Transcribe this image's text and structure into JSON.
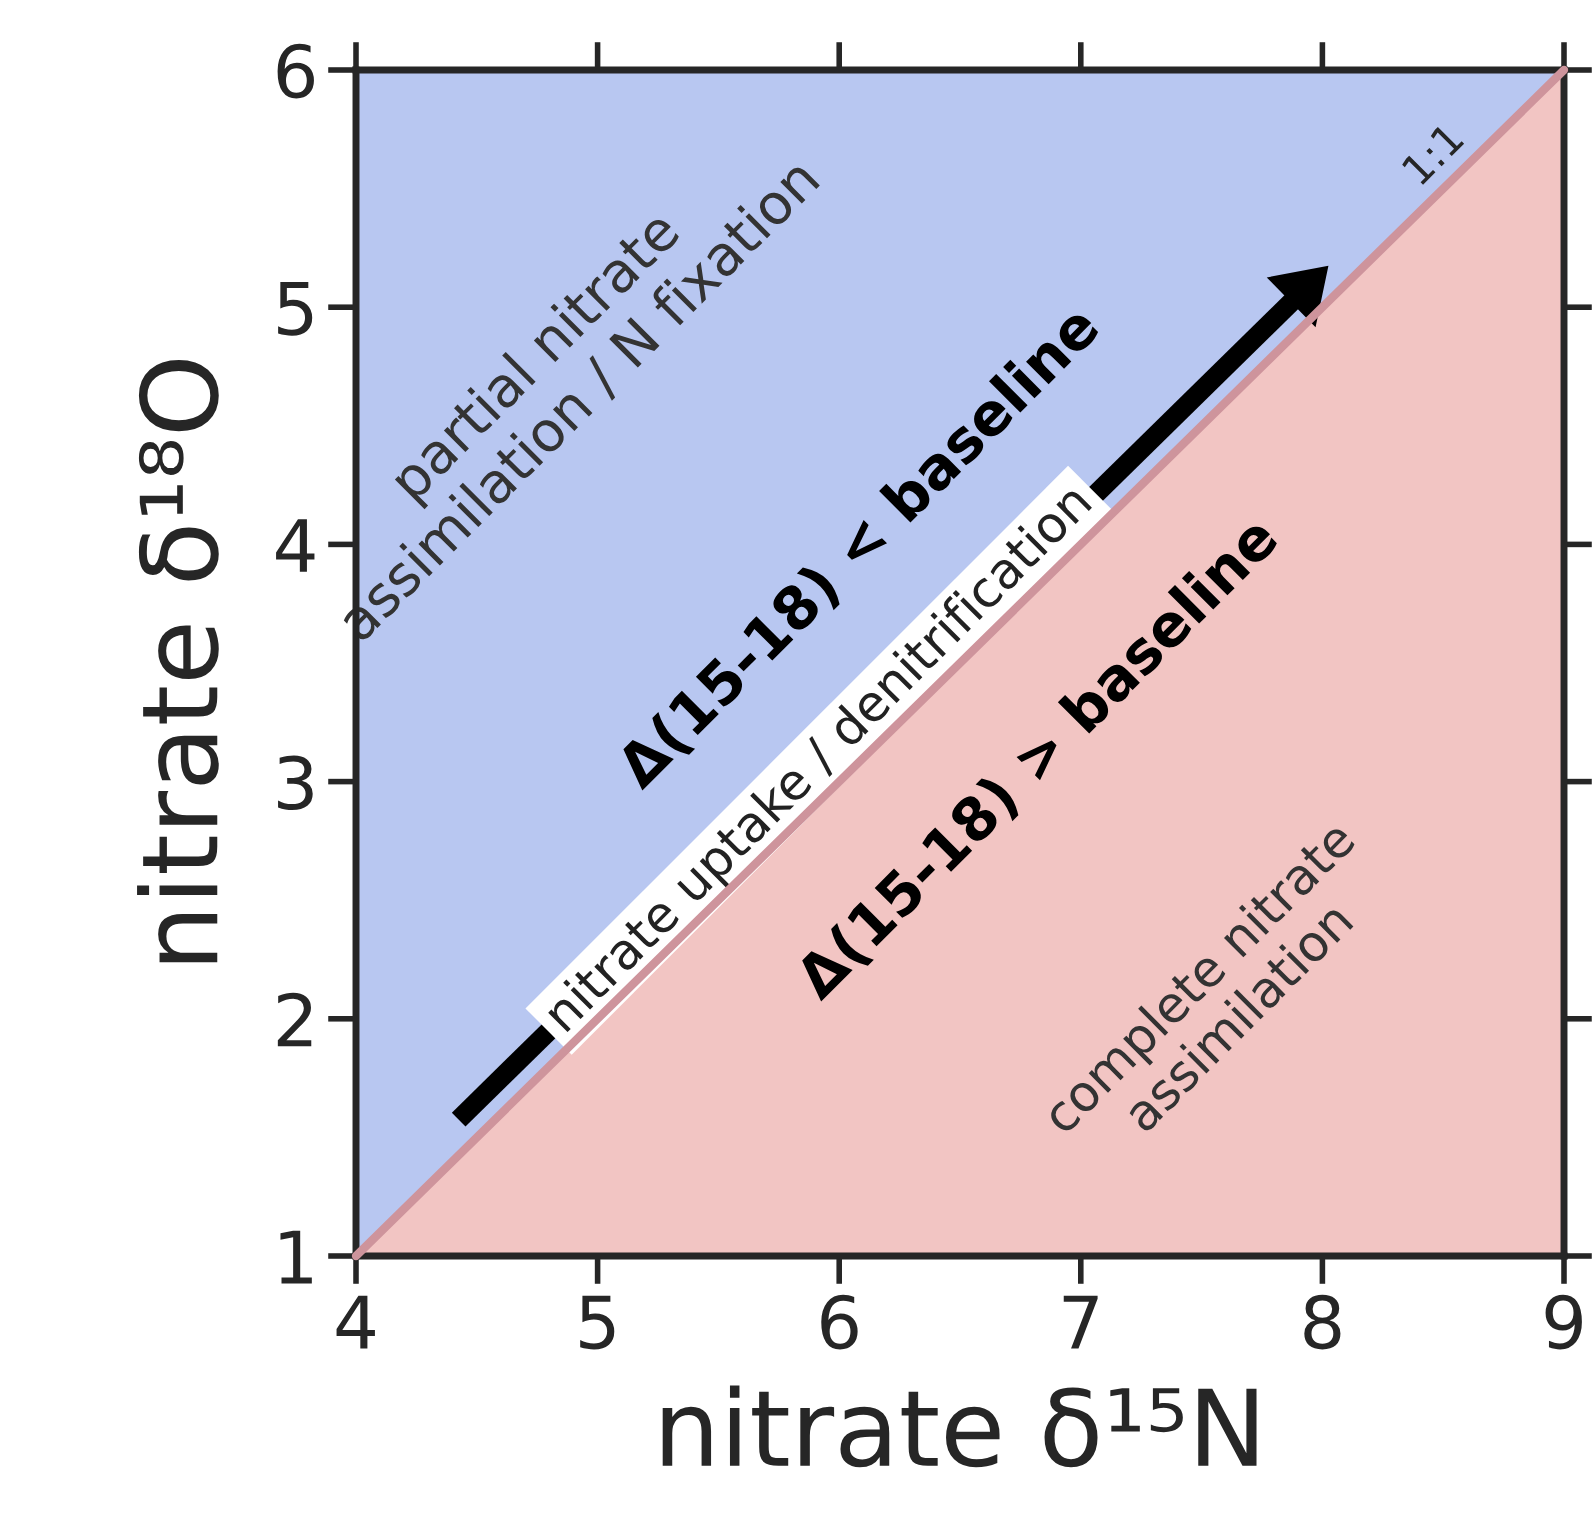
{
  "chart_data": {
    "type": "area",
    "xlabel": "nitrate δ¹⁵N",
    "ylabel": "nitrate δ¹⁸O",
    "xlim": [
      4,
      9
    ],
    "ylim": [
      1,
      6
    ],
    "xticks": [
      4,
      5,
      6,
      7,
      8,
      9
    ],
    "yticks": [
      1,
      2,
      3,
      4,
      5,
      6
    ],
    "series": [
      {
        "name": "1:1",
        "color": "#f2c5c3",
        "x": [
          4,
          9
        ],
        "values": [
          1,
          6
        ]
      }
    ],
    "annotations": [
      "partial nitrate\nassimilation / N fixation",
      "Δ(15-18) < baseline",
      "nitrate uptake / denitrification",
      "Δ(15-18) > baseline",
      "complete nitrate\nassimilation"
    ]
  }
}
